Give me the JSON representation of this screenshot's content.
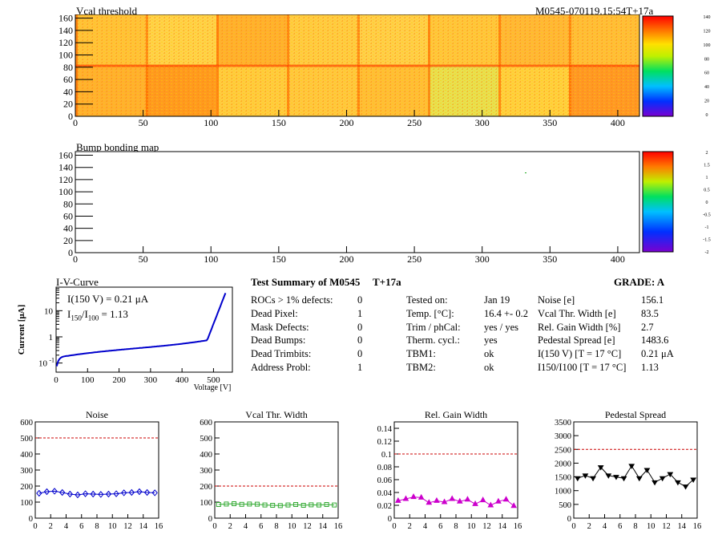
{
  "header": {
    "vcal_title": "Vcal threshold",
    "module_id": "M0545-070119.15:54T+17a",
    "bump_title": "Bump bonding map"
  },
  "maps": {
    "x_ticks": [
      "0",
      "50",
      "100",
      "150",
      "200",
      "250",
      "300",
      "350",
      "400"
    ],
    "y_ticks": [
      "0",
      "20",
      "40",
      "60",
      "80",
      "100",
      "120",
      "140",
      "160"
    ],
    "vcal_scale": [
      "140",
      "120",
      "100",
      "80",
      "60",
      "40",
      "20",
      "0"
    ],
    "bump_scale": [
      "2",
      "1.5",
      "1",
      "0.5",
      "0",
      "-0.5",
      "-1",
      "-1.5",
      "-2"
    ]
  },
  "iv": {
    "title": "I-V-Curve",
    "ylabel": "Current [μA]",
    "xlabel": "Voltage [V]",
    "line1": "I(150 V) = 0.21 μA",
    "line2_a": "I",
    "line2_sub1": "150",
    "line2_b": "/I",
    "line2_sub2": "100",
    "line2_c": " =  1.13",
    "x_ticks": [
      "0",
      "100",
      "200",
      "300",
      "400",
      "500"
    ],
    "y_ticks": [
      "10",
      "1",
      "10"
    ],
    "y_exp": [
      "",
      "",
      "-1"
    ]
  },
  "summary": {
    "title": "Test Summary of M0545",
    "tag": "T+17a",
    "grade": "GRADE:  A",
    "c1_labels": [
      "ROCs > 1% defects:",
      "Dead Pixel:",
      "Mask Defects:",
      "Dead Bumps:",
      "Dead Trimbits:",
      "Address Probl:"
    ],
    "c1_values": [
      "0",
      "1",
      "0",
      "0",
      "0",
      "1"
    ],
    "c2_labels": [
      "Tested on:",
      "Temp. [°C]:",
      "Trim / phCal:",
      "Therm. cycl.:",
      "TBM1:",
      "TBM2:"
    ],
    "c2_values": [
      "Jan 19",
      "16.4 +- 0.2",
      "yes / yes",
      "yes",
      "ok",
      "ok"
    ],
    "c3_labels": [
      "Noise [e]",
      "Vcal Thr. Width [e]",
      "Rel. Gain Width [%]",
      "Pedestal Spread [e]",
      "I(150 V) [T = 17 °C]",
      "I150/I100  [T = 17 °C]"
    ],
    "c3_values": [
      "156.1",
      "83.5",
      "2.7",
      "1483.6",
      "0.21 μA",
      "1.13"
    ]
  },
  "colors": {
    "noise": "#0000cc",
    "vcal": "#33aa33",
    "gain": "#cc00cc",
    "pedestal": "#000000",
    "limit": "#cc0000"
  },
  "chart_data": [
    {
      "type": "line",
      "title": "Noise",
      "x": [
        0,
        1,
        2,
        3,
        4,
        5,
        6,
        7,
        8,
        9,
        10,
        11,
        12,
        13,
        14,
        15
      ],
      "values": [
        155,
        165,
        168,
        160,
        150,
        145,
        152,
        150,
        148,
        150,
        152,
        158,
        160,
        165,
        160,
        158
      ],
      "ylim": [
        0,
        600
      ],
      "yticks": [
        0,
        100,
        200,
        300,
        400,
        500,
        600
      ],
      "xlim": [
        0,
        16
      ],
      "limit": 500,
      "marker": "diamond"
    },
    {
      "type": "line",
      "title": "Vcal Thr. Width",
      "x": [
        0,
        1,
        2,
        3,
        4,
        5,
        6,
        7,
        8,
        9,
        10,
        11,
        12,
        13,
        14,
        15
      ],
      "values": [
        85,
        88,
        90,
        86,
        88,
        87,
        82,
        80,
        78,
        82,
        85,
        80,
        83,
        82,
        85,
        82
      ],
      "ylim": [
        0,
        600
      ],
      "yticks": [
        0,
        100,
        200,
        300,
        400,
        500,
        600
      ],
      "xlim": [
        0,
        16
      ],
      "limit": 200,
      "marker": "square"
    },
    {
      "type": "line",
      "title": "Rel. Gain Width",
      "x": [
        0,
        1,
        2,
        3,
        4,
        5,
        6,
        7,
        8,
        9,
        10,
        11,
        12,
        13,
        14,
        15
      ],
      "values": [
        0.027,
        0.03,
        0.033,
        0.032,
        0.024,
        0.027,
        0.025,
        0.03,
        0.026,
        0.029,
        0.022,
        0.028,
        0.02,
        0.026,
        0.029,
        0.019
      ],
      "ylim": [
        0,
        0.15
      ],
      "yticks": [
        0,
        0.02,
        0.04,
        0.06,
        0.08,
        0.1,
        0.12,
        0.14
      ],
      "xlim": [
        0,
        16
      ],
      "limit": 0.1,
      "marker": "triangle"
    },
    {
      "type": "line",
      "title": "Pedestal Spread",
      "x": [
        0,
        1,
        2,
        3,
        4,
        5,
        6,
        7,
        8,
        9,
        10,
        11,
        12,
        13,
        14,
        15
      ],
      "values": [
        1450,
        1550,
        1450,
        1850,
        1550,
        1500,
        1450,
        1900,
        1450,
        1750,
        1300,
        1450,
        1600,
        1300,
        1150,
        1400
      ],
      "ylim": [
        0,
        3500
      ],
      "yticks": [
        0,
        500,
        1000,
        1500,
        2000,
        2500,
        3000,
        3500
      ],
      "xlim": [
        0,
        16
      ],
      "limit": 2500,
      "marker": "triangle-down"
    }
  ]
}
